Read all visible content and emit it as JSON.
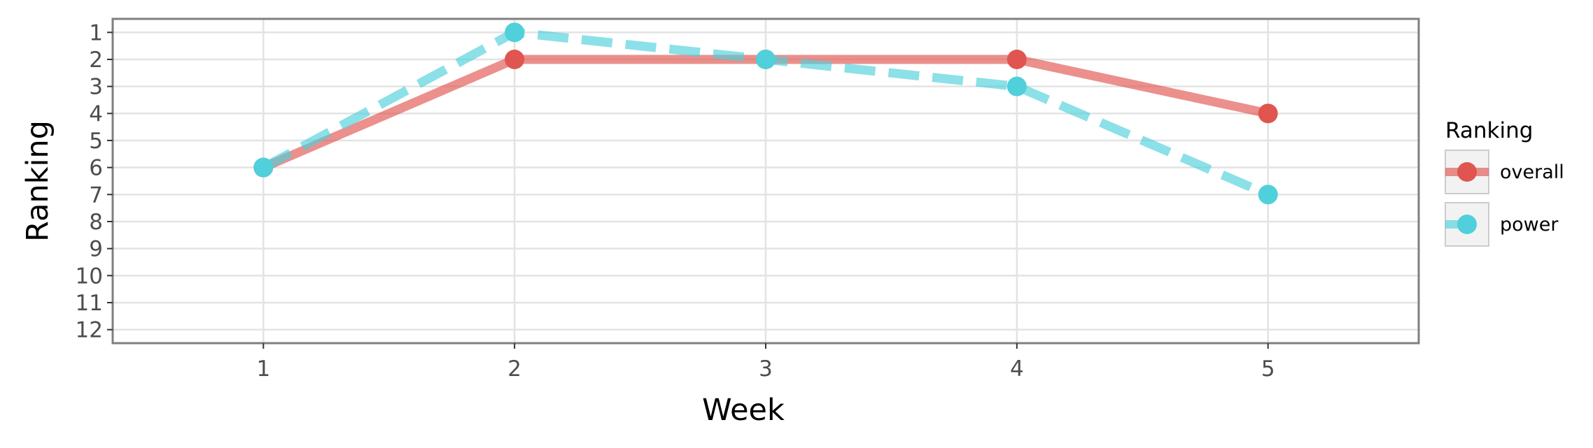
{
  "chart_data": {
    "type": "line",
    "title": "",
    "xlabel": "Week",
    "ylabel": "Ranking",
    "x": [
      1,
      2,
      3,
      4,
      5
    ],
    "x_ticks": [
      "1",
      "2",
      "3",
      "4",
      "5"
    ],
    "xlim": [
      0.4,
      5.6
    ],
    "y_ticks": [
      "1",
      "2",
      "3",
      "4",
      "5",
      "6",
      "7",
      "8",
      "9",
      "10",
      "11",
      "12"
    ],
    "ylim": [
      12.5,
      0.5
    ],
    "y_reversed": true,
    "grid": true,
    "legend": {
      "title": "Ranking",
      "position": "right"
    },
    "series": [
      {
        "name": "overall",
        "values": [
          6,
          2,
          2,
          2,
          4
        ],
        "color": "#e0554f",
        "line_style": "solid"
      },
      {
        "name": "power",
        "values": [
          6,
          1,
          2,
          3,
          7
        ],
        "color": "#4fd0db",
        "line_style": "dashed"
      }
    ]
  }
}
